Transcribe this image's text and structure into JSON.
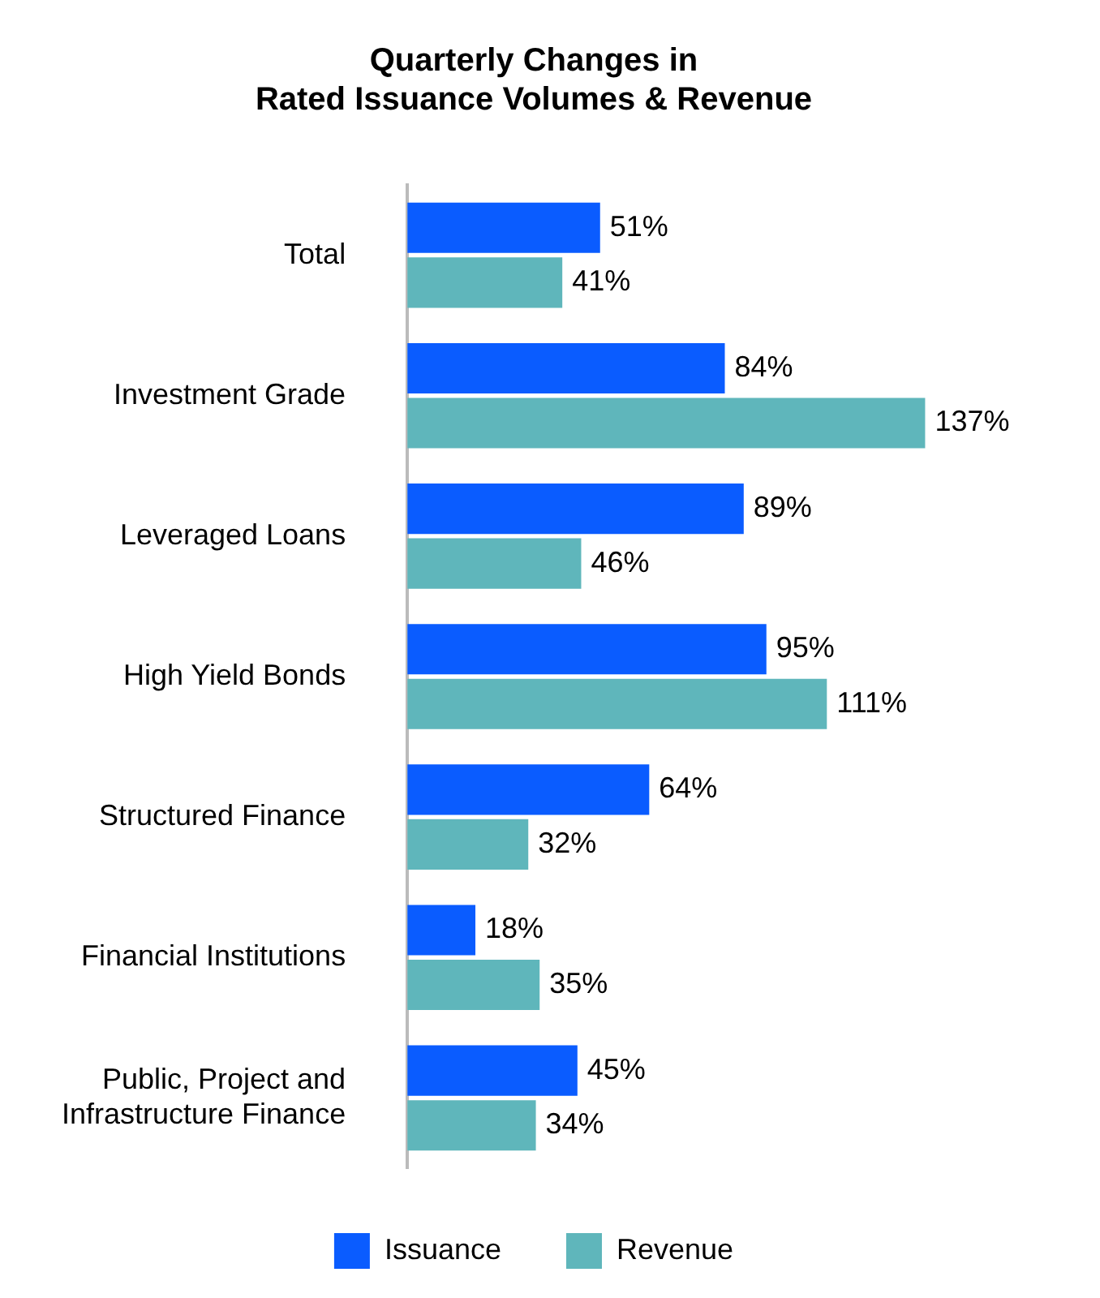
{
  "chart_data": {
    "type": "bar",
    "orientation": "horizontal",
    "title": "Quarterly Changes in\nRated Issuance Volumes & Revenue",
    "categories": [
      "Total",
      "Investment Grade",
      "Leveraged Loans",
      "High Yield Bonds",
      "Structured Finance",
      "Financial Institutions",
      "Public, Project and Infrastructure Finance"
    ],
    "series": [
      {
        "name": "Issuance",
        "color": "#0a5cff",
        "values": [
          51,
          84,
          89,
          95,
          64,
          18,
          45
        ],
        "value_labels": [
          "51%",
          "84%",
          "89%",
          "95%",
          "64%",
          "18%",
          "45%"
        ]
      },
      {
        "name": "Revenue",
        "color": "#5fb6bb",
        "values": [
          41,
          137,
          46,
          111,
          32,
          35,
          34
        ],
        "value_labels": [
          "41%",
          "137%",
          "46%",
          "111%",
          "32%",
          "35%",
          "34%"
        ]
      }
    ],
    "legend": "bottom",
    "tick_labels": "y"
  }
}
